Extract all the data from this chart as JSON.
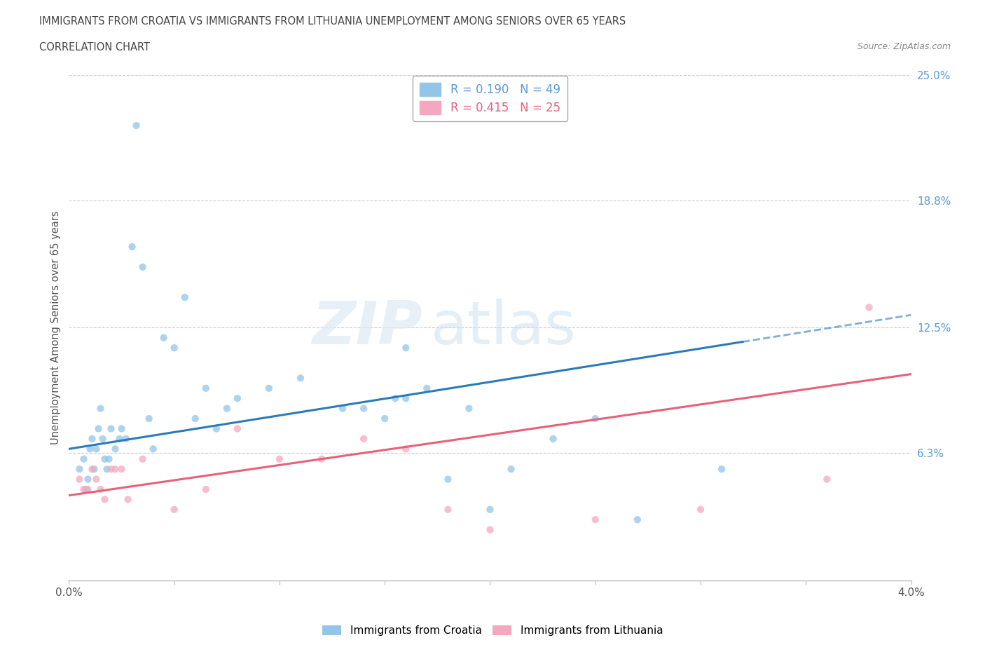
{
  "title_line1": "IMMIGRANTS FROM CROATIA VS IMMIGRANTS FROM LITHUANIA UNEMPLOYMENT AMONG SENIORS OVER 65 YEARS",
  "title_line2": "CORRELATION CHART",
  "source": "Source: ZipAtlas.com",
  "ylabel_label": "Unemployment Among Seniors over 65 years",
  "legend_croatia": "Immigrants from Croatia",
  "legend_lithuania": "Immigrants from Lithuania",
  "croatia_R": "0.190",
  "croatia_N": "49",
  "lithuania_R": "0.415",
  "lithuania_N": "25",
  "croatia_color": "#92c5e8",
  "lithuania_color": "#f4a8bf",
  "croatia_line_color": "#2b7bba",
  "lithuania_line_color": "#e8607a",
  "watermark_zip": "ZIP",
  "watermark_atlas": "atlas",
  "xmin": 0.0,
  "xmax": 4.0,
  "ymin": 0.0,
  "ymax": 25.0,
  "yticks": [
    6.3,
    12.5,
    18.8,
    25.0
  ],
  "ytick_labels": [
    "6.3%",
    "12.5%",
    "18.8%",
    "25.0%"
  ],
  "xtick_labels": [
    "0.0%",
    "",
    "",
    "",
    "",
    "",
    "",
    "",
    "4.0%"
  ],
  "croatia_x": [
    0.05,
    0.07,
    0.08,
    0.09,
    0.1,
    0.11,
    0.12,
    0.13,
    0.14,
    0.15,
    0.16,
    0.17,
    0.18,
    0.19,
    0.2,
    0.22,
    0.24,
    0.25,
    0.27,
    0.3,
    0.32,
    0.35,
    0.38,
    0.4,
    0.45,
    0.5,
    0.55,
    0.6,
    0.65,
    0.7,
    0.75,
    0.8,
    0.95,
    1.1,
    1.3,
    1.4,
    1.5,
    1.55,
    1.6,
    1.7,
    1.8,
    1.9,
    2.0,
    2.1,
    2.3,
    2.5,
    2.7,
    3.1,
    1.6
  ],
  "croatia_y": [
    5.5,
    6.0,
    4.5,
    5.0,
    6.5,
    7.0,
    5.5,
    6.5,
    7.5,
    8.5,
    7.0,
    6.0,
    5.5,
    6.0,
    7.5,
    6.5,
    7.0,
    7.5,
    7.0,
    16.5,
    22.5,
    15.5,
    8.0,
    6.5,
    12.0,
    11.5,
    14.0,
    8.0,
    9.5,
    7.5,
    8.5,
    9.0,
    9.5,
    10.0,
    8.5,
    8.5,
    8.0,
    9.0,
    9.0,
    9.5,
    5.0,
    8.5,
    3.5,
    5.5,
    7.0,
    8.0,
    3.0,
    5.5,
    11.5
  ],
  "lithuania_x": [
    0.05,
    0.07,
    0.09,
    0.11,
    0.13,
    0.15,
    0.17,
    0.2,
    0.22,
    0.25,
    0.28,
    0.35,
    0.5,
    0.65,
    0.8,
    1.0,
    1.2,
    1.4,
    1.6,
    1.8,
    2.0,
    2.5,
    3.0,
    3.6,
    3.8
  ],
  "lithuania_y": [
    5.0,
    4.5,
    4.5,
    5.5,
    5.0,
    4.5,
    4.0,
    5.5,
    5.5,
    5.5,
    4.0,
    6.0,
    3.5,
    4.5,
    7.5,
    6.0,
    6.0,
    7.0,
    6.5,
    3.5,
    2.5,
    3.0,
    3.5,
    5.0,
    13.5
  ],
  "croatia_line_x0": 0.0,
  "croatia_line_y0": 6.5,
  "croatia_line_x1": 3.2,
  "croatia_line_y1": 11.8,
  "lithuania_line_x0": 0.0,
  "lithuania_line_y0": 4.2,
  "lithuania_line_x1": 4.0,
  "lithuania_line_y1": 10.2
}
